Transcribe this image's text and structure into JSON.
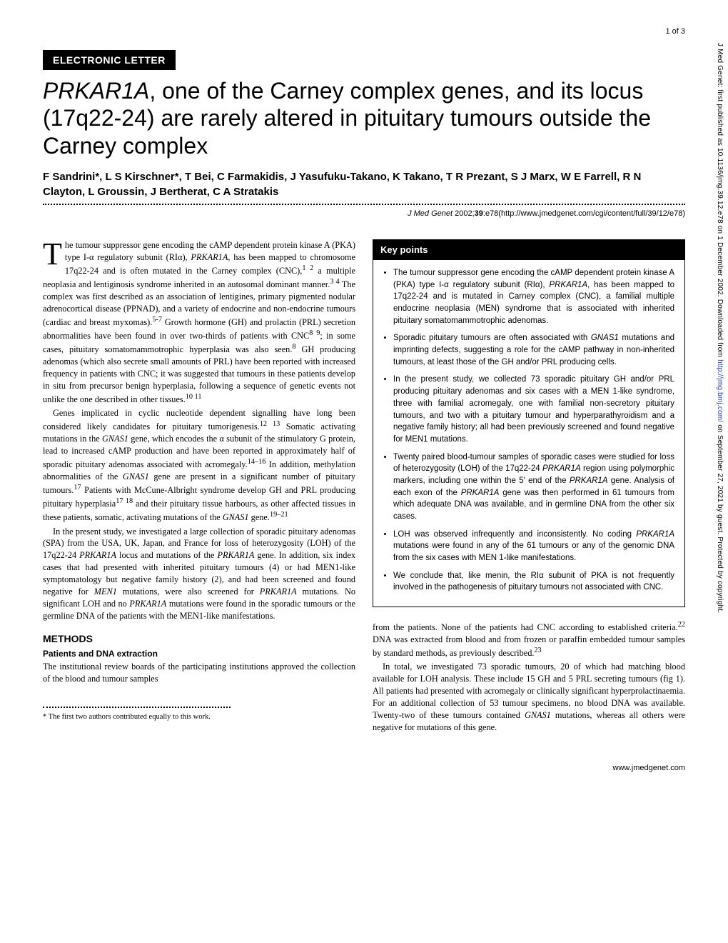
{
  "page_number": "1 of 3",
  "section_badge": "ELECTRONIC LETTER",
  "title_html": "<em>PRKAR1A</em>, one of the Carney complex genes, and its locus (17q22-24) are rarely altered in pituitary tumours outside the Carney complex",
  "authors": "F Sandrini*, L S Kirschner*, T Bei, C Farmakidis, J Yasufuku-Takano, K Takano, T R Prezant, S J Marx, W E Farrell, R N Clayton, L Groussin, J Bertherat, C A Stratakis",
  "citation_html": "<em>J Med Genet</em> 2002;<b>39</b>:e78(http://www.jmedgenet.com/cgi/content/full/39/12/e78)",
  "left_col": {
    "p1_html": "he tumour suppressor gene encoding the cAMP dependent protein kinase A (PKA) type I-α regulatory subunit (RIα), <em>PRKAR1A</em>, has been mapped to chromosome 17q22-24 and is often mutated in the Carney complex (CNC),<sup>1 2</sup> a multiple neoplasia and lentiginosis syndrome inherited in an autosomal dominant manner.<sup>3 4</sup> The complex was first described as an association of lentigines, primary pigmented nodular adrenocortical disease (PPNAD), and a variety of endocrine and non-endocrine tumours (cardiac and breast myxomas).<sup>5-7</sup> Growth hormone (GH) and prolactin (PRL) secretion abnormalities have been found in over two-thirds of patients with CNC<sup>8 9</sup>; in some cases, pituitary somatomammotrophic hyperplasia was also seen.<sup>8</sup> GH producing adenomas (which also secrete small amounts of PRL) have been reported with increased frequency in patients with CNC; it was suggested that tumours in these patients develop in situ from precursor benign hyperplasia, following a sequence of genetic events not unlike the one described in other tissues.<sup>10 11</sup>",
    "p2_html": "Genes implicated in cyclic nucleotide dependent signalling have long been considered likely candidates for pituitary tumorigenesis.<sup>12 13</sup> Somatic activating mutations in the <em>GNAS1</em> gene, which encodes the α subunit of the stimulatory G protein, lead to increased cAMP production and have been reported in approximately half of sporadic pituitary adenomas associated with acromegaly.<sup>14–16</sup> In addition, methylation abnormalities of the <em>GNAS1</em> gene are present in a significant number of pituitary tumours.<sup>17</sup> Patients with McCune-Albright syndrome develop GH and PRL producing pituitary hyperplasia<sup>17 18</sup> and their pituitary tissue harbours, as other affected tissues in these patients, somatic, activating mutations of the <em>GNAS1</em> gene.<sup>19–21</sup>",
    "p3_html": "In the present study, we investigated a large collection of sporadic pituitary adenomas (SPA) from the USA, UK, Japan, and France for loss of heterozygosity (LOH) of the 17q22-24 <em>PRKAR1A</em> locus and mutations of the <em>PRKAR1A</em> gene. In addition, six index cases that had presented with inherited pituitary tumours (4) or had MEN1-like symptomatology but negative family history (2), and had been screened and found negative for <em>MEN1</em> mutations, were also screened for <em>PRKAR1A</em> mutations. No significant LOH and no <em>PRKAR1A</em> mutations were found in the sporadic tumours or the germline DNA of the patients with the MEN1-like manifestations.",
    "methods_heading": "METHODS",
    "methods_sub": "Patients and DNA extraction",
    "p4_html": "The institutional review boards of the participating institutions approved the collection of the blood and tumour samples",
    "footnote": "* The first two authors contributed equally to this work."
  },
  "key_points": {
    "header": "Key points",
    "items_html": [
      "The tumour suppressor gene encoding the cAMP dependent protein kinase A (PKA) type I-α regulatory subunit (RIα), <em>PRKAR1A</em>, has been mapped to 17q22-24 and is mutated in Carney complex (CNC), a familial multiple endocrine neoplasia (MEN) syndrome that is associated with inherited pituitary somatomammotrophic adenomas.",
      "Sporadic pituitary tumours are often associated with <em>GNAS1</em> mutations and imprinting defects, suggesting a role for the cAMP pathway in non-inherited tumours, at least those of the GH and/or PRL producing cells.",
      "In the present study, we collected 73 sporadic pituitary GH and/or PRL producing pituitary adenomas and six cases with a MEN 1-like syndrome, three with familial acromegaly, one with familial non-secretory pituitary tumours, and two with a pituitary tumour and hyperparathyroidism and a negative family history; all had been previously screened and found negative for MEN1 mutations.",
      "Twenty paired blood-tumour samples of sporadic cases were studied for loss of heterozygosity (LOH) of the 17q22-24 <em>PRKAR1A</em> region using polymorphic markers, including one within the 5′ end of the <em>PRKAR1A</em> gene. Analysis of each exon of the <em>PRKAR1A</em> gene was then performed in 61 tumours from which adequate DNA was available, and in germline DNA from the other six cases.",
      "LOH was observed infrequently and inconsistently. No coding <em>PRKAR1A</em> mutations were found in any of the 61 tumours or any of the genomic DNA from the six cases with MEN 1-like manifestations.",
      "We conclude that, like menin, the RIα subunit of PKA is not frequently involved in the pathogenesis of pituitary tumours not associated with CNC."
    ]
  },
  "right_col": {
    "p1_html": "from the patients. None of the patients had CNC according to established criteria.<sup>22</sup> DNA was extracted from blood and from frozen or paraffin embedded tumour samples by standard methods, as previously described.<sup>23</sup>",
    "p2_html": "In total, we investigated 73 sporadic tumours, 20 of which had matching blood available for LOH analysis. These include 15 GH and 5 PRL secreting tumours (fig 1). All patients had presented with acromegaly or clinically significant hyperprolactinaemia. For an additional collection of 53 tumour specimens, no blood DNA was available. Twenty-two of these tumours contained <em>GNAS1</em> mutations, whereas all others were negative for mutations of this gene."
  },
  "footer": "www.jmedgenet.com",
  "side_text_html": "J Med Genet: first published as 10.1136/jmg.39.12.e78 on 1 December 2002. Downloaded from <a>http://jmg.bmj.com/</a> on September 27, 2021 by guest. Protected by copyright."
}
